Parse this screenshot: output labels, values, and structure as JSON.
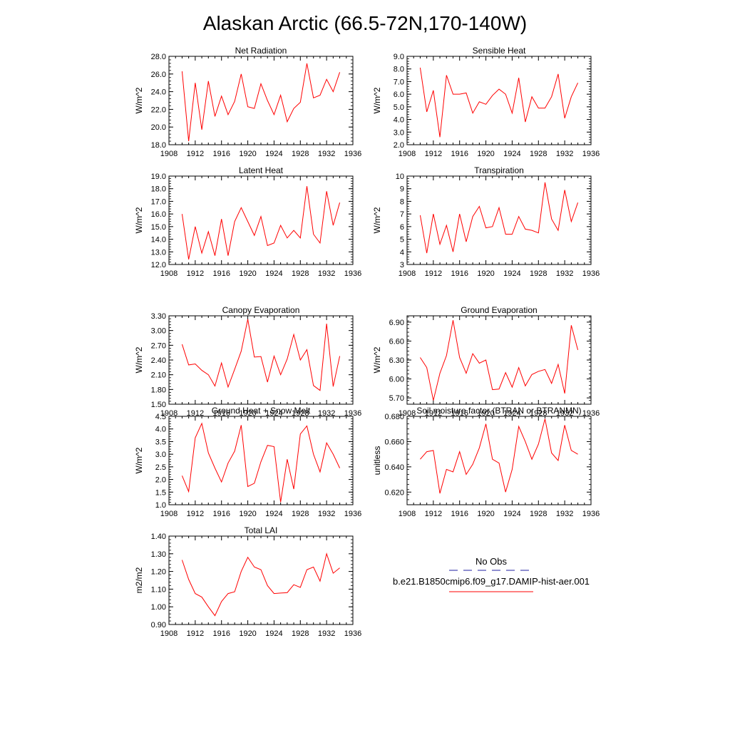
{
  "figure": {
    "title": "Alaskan Arctic (66.5-72N,170-140W)"
  },
  "legend": {
    "obs_label": "No Obs",
    "obs_color": "#1f1fa0",
    "model_label": "b.e21.B1850cmip6.f09_g17.DAMIP-hist-aer.001",
    "model_color": "#ff0000"
  },
  "chart_data": [
    {
      "type": "line",
      "title": "Net Radiation",
      "ylabel": "W/m^2",
      "xlim": [
        1908,
        1936
      ],
      "xticks": [
        "1908",
        "1912",
        "1916",
        "1920",
        "1924",
        "1928",
        "1932",
        "1936"
      ],
      "ylim": [
        18,
        28
      ],
      "yticks": [
        "18.0",
        "20.0",
        "22.0",
        "24.0",
        "26.0",
        "28.0"
      ],
      "series": [
        {
          "color": "#ff0000",
          "x": [
            1910,
            1911,
            1912,
            1913,
            1914,
            1915,
            1916,
            1917,
            1918,
            1919,
            1920,
            1921,
            1922,
            1923,
            1924,
            1925,
            1926,
            1927,
            1928,
            1929,
            1930,
            1931,
            1932,
            1933,
            1934
          ],
          "values": [
            26.3,
            18.4,
            25.0,
            19.7,
            25.2,
            21.2,
            23.5,
            21.4,
            22.9,
            26.0,
            22.3,
            22.1,
            24.9,
            23.0,
            21.4,
            23.6,
            20.6,
            22.1,
            22.8,
            27.2,
            23.3,
            23.6,
            25.4,
            24.0,
            26.2
          ]
        }
      ]
    },
    {
      "type": "line",
      "title": "Sensible Heat",
      "ylabel": "W/m^2",
      "xlim": [
        1908,
        1936
      ],
      "xticks": [
        "1908",
        "1912",
        "1916",
        "1920",
        "1924",
        "1928",
        "1932",
        "1936"
      ],
      "ylim": [
        2,
        9
      ],
      "yticks": [
        "2.0",
        "3.0",
        "4.0",
        "5.0",
        "6.0",
        "7.0",
        "8.0",
        "9.0"
      ],
      "series": [
        {
          "color": "#ff0000",
          "x": [
            1910,
            1911,
            1912,
            1913,
            1914,
            1915,
            1916,
            1917,
            1918,
            1919,
            1920,
            1921,
            1922,
            1923,
            1924,
            1925,
            1926,
            1927,
            1928,
            1929,
            1930,
            1931,
            1932,
            1933,
            1934
          ],
          "values": [
            8.1,
            4.6,
            6.3,
            2.6,
            7.5,
            6.0,
            6.0,
            6.1,
            4.5,
            5.4,
            5.2,
            5.9,
            6.4,
            6.0,
            4.5,
            7.3,
            3.8,
            5.8,
            4.9,
            4.9,
            5.8,
            7.6,
            4.1,
            5.8,
            6.9
          ]
        }
      ]
    },
    {
      "type": "line",
      "title": "Latent Heat",
      "ylabel": "W/m^2",
      "xlim": [
        1908,
        1936
      ],
      "xticks": [
        "1908",
        "1912",
        "1916",
        "1920",
        "1924",
        "1928",
        "1932",
        "1936"
      ],
      "ylim": [
        12,
        19
      ],
      "yticks": [
        "12.0",
        "13.0",
        "14.0",
        "15.0",
        "16.0",
        "17.0",
        "18.0",
        "19.0"
      ],
      "series": [
        {
          "color": "#ff0000",
          "x": [
            1910,
            1911,
            1912,
            1913,
            1914,
            1915,
            1916,
            1917,
            1918,
            1919,
            1920,
            1921,
            1922,
            1923,
            1924,
            1925,
            1926,
            1927,
            1928,
            1929,
            1930,
            1931,
            1932,
            1933,
            1934
          ],
          "values": [
            16.0,
            12.4,
            15.0,
            12.9,
            14.6,
            12.7,
            15.6,
            12.7,
            15.4,
            16.5,
            15.4,
            14.3,
            15.8,
            13.5,
            13.7,
            15.1,
            14.1,
            14.7,
            14.1,
            18.2,
            14.4,
            13.7,
            17.8,
            15.1,
            16.9
          ]
        }
      ]
    },
    {
      "type": "line",
      "title": "Transpiration",
      "ylabel": "W/m^2",
      "xlim": [
        1908,
        1936
      ],
      "xticks": [
        "1908",
        "1912",
        "1916",
        "1920",
        "1924",
        "1928",
        "1932",
        "1936"
      ],
      "ylim": [
        3,
        10
      ],
      "yticks": [
        "3",
        "4",
        "5",
        "6",
        "7",
        "8",
        "9",
        "10"
      ],
      "series": [
        {
          "color": "#ff0000",
          "x": [
            1910,
            1911,
            1912,
            1913,
            1914,
            1915,
            1916,
            1917,
            1918,
            1919,
            1920,
            1921,
            1922,
            1923,
            1924,
            1925,
            1926,
            1927,
            1928,
            1929,
            1930,
            1931,
            1932,
            1933,
            1934
          ],
          "values": [
            6.9,
            3.9,
            7.0,
            4.6,
            6.1,
            4.0,
            7.0,
            4.8,
            6.8,
            7.6,
            5.9,
            6.0,
            7.5,
            5.4,
            5.4,
            6.8,
            5.8,
            5.7,
            5.5,
            9.5,
            6.6,
            5.7,
            8.9,
            6.4,
            7.9
          ]
        }
      ]
    },
    {
      "type": "line",
      "title": "Canopy Evaporation",
      "ylabel": "W/m^2",
      "xlim": [
        1908,
        1936
      ],
      "xticks": [
        "1908",
        "1912",
        "1916",
        "1920",
        "1924",
        "1928",
        "1932",
        "1936"
      ],
      "ylim": [
        1.5,
        3.3
      ],
      "yticks": [
        "1.50",
        "1.80",
        "2.10",
        "2.40",
        "2.70",
        "3.00",
        "3.30"
      ],
      "series": [
        {
          "color": "#ff0000",
          "x": [
            1910,
            1911,
            1912,
            1913,
            1914,
            1915,
            1916,
            1917,
            1918,
            1919,
            1920,
            1921,
            1922,
            1923,
            1924,
            1925,
            1926,
            1927,
            1928,
            1929,
            1930,
            1931,
            1932,
            1933,
            1934
          ],
          "values": [
            2.72,
            2.3,
            2.32,
            2.19,
            2.1,
            1.87,
            2.34,
            1.85,
            2.21,
            2.58,
            3.23,
            2.46,
            2.47,
            1.95,
            2.48,
            2.1,
            2.42,
            2.92,
            2.4,
            2.61,
            1.88,
            1.78,
            3.14,
            1.86,
            2.48
          ]
        }
      ]
    },
    {
      "type": "line",
      "title": "Ground Evaporation",
      "ylabel": "W/m^2",
      "xlim": [
        1908,
        1936
      ],
      "xticks": [
        "1908",
        "1912",
        "1916",
        "1920",
        "1924",
        "1928",
        "1932",
        "1936"
      ],
      "ylim": [
        5.6,
        7.0
      ],
      "yticks": [
        "5.70",
        "6.00",
        "6.30",
        "6.60",
        "6.90"
      ],
      "series": [
        {
          "color": "#ff0000",
          "x": [
            1910,
            1911,
            1912,
            1913,
            1914,
            1915,
            1916,
            1917,
            1918,
            1919,
            1920,
            1921,
            1922,
            1923,
            1924,
            1925,
            1926,
            1927,
            1928,
            1929,
            1930,
            1931,
            1932,
            1933,
            1934
          ],
          "values": [
            6.34,
            6.18,
            5.66,
            6.09,
            6.37,
            6.93,
            6.34,
            6.09,
            6.4,
            6.25,
            6.3,
            5.83,
            5.84,
            6.1,
            5.87,
            6.18,
            5.89,
            6.07,
            6.12,
            6.15,
            5.93,
            6.23,
            5.77,
            6.85,
            6.46
          ]
        }
      ]
    },
    {
      "type": "line",
      "title": "Ground Heat + Snow Melt",
      "ylabel": "W/m^2",
      "xlim": [
        1908,
        1936
      ],
      "xticks": [
        "1908",
        "1912",
        "1916",
        "1920",
        "1924",
        "1928",
        "1932",
        "1936"
      ],
      "ylim": [
        1.0,
        4.5
      ],
      "yticks": [
        "1.0",
        "1.5",
        "2.0",
        "2.5",
        "3.0",
        "3.5",
        "4.0",
        "4.5"
      ],
      "series": [
        {
          "color": "#ff0000",
          "x": [
            1910,
            1911,
            1912,
            1913,
            1914,
            1915,
            1916,
            1917,
            1918,
            1919,
            1920,
            1921,
            1922,
            1923,
            1924,
            1925,
            1926,
            1927,
            1928,
            1929,
            1930,
            1931,
            1932,
            1933,
            1934
          ],
          "values": [
            2.15,
            1.52,
            3.65,
            4.22,
            3.05,
            2.45,
            1.9,
            2.65,
            3.12,
            4.15,
            1.72,
            1.85,
            2.7,
            3.35,
            3.3,
            1.1,
            2.8,
            1.62,
            3.8,
            4.12,
            3.0,
            2.3,
            3.45,
            3.0,
            2.45
          ]
        }
      ]
    },
    {
      "type": "line",
      "title": "Soil moisture factor (BTRAN or BTRANMN)",
      "ylabel": "unitless",
      "xlim": [
        1908,
        1936
      ],
      "xticks": [
        "1908",
        "1912",
        "1916",
        "1920",
        "1924",
        "1928",
        "1932",
        "1936"
      ],
      "ylim": [
        0.61,
        0.68
      ],
      "yticks": [
        "0.620",
        "0.640",
        "0.660",
        "0.680"
      ],
      "series": [
        {
          "color": "#ff0000",
          "x": [
            1910,
            1911,
            1912,
            1913,
            1914,
            1915,
            1916,
            1917,
            1918,
            1919,
            1920,
            1921,
            1922,
            1923,
            1924,
            1925,
            1926,
            1927,
            1928,
            1929,
            1930,
            1931,
            1932,
            1933,
            1934
          ],
          "values": [
            0.646,
            0.652,
            0.653,
            0.619,
            0.638,
            0.636,
            0.652,
            0.634,
            0.642,
            0.655,
            0.674,
            0.646,
            0.643,
            0.62,
            0.638,
            0.672,
            0.66,
            0.646,
            0.658,
            0.678,
            0.651,
            0.645,
            0.673,
            0.653,
            0.65
          ]
        }
      ]
    },
    {
      "type": "line",
      "title": "Total LAI",
      "ylabel": "m2/m2",
      "xlim": [
        1908,
        1936
      ],
      "xticks": [
        "1908",
        "1912",
        "1916",
        "1920",
        "1924",
        "1928",
        "1932",
        "1936"
      ],
      "ylim": [
        0.9,
        1.4
      ],
      "yticks": [
        "0.90",
        "1.00",
        "1.10",
        "1.20",
        "1.30",
        "1.40"
      ],
      "series": [
        {
          "color": "#ff0000",
          "x": [
            1910,
            1911,
            1912,
            1913,
            1914,
            1915,
            1916,
            1917,
            1918,
            1919,
            1920,
            1921,
            1922,
            1923,
            1924,
            1925,
            1926,
            1927,
            1928,
            1929,
            1930,
            1931,
            1932,
            1933,
            1934
          ],
          "values": [
            1.265,
            1.155,
            1.075,
            1.055,
            1.0,
            0.95,
            1.03,
            1.075,
            1.085,
            1.2,
            1.28,
            1.225,
            1.21,
            1.12,
            1.075,
            1.078,
            1.08,
            1.125,
            1.11,
            1.21,
            1.225,
            1.145,
            1.3,
            1.19,
            1.22
          ]
        }
      ]
    }
  ]
}
